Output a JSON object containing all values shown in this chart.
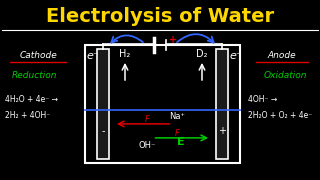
{
  "title": "Electrolysis of Water",
  "title_color": "#FFD700",
  "background_color": "#000000",
  "cathode_label": "Cathode",
  "anode_label": "Anode",
  "reduction_label": "Reduction",
  "oxidation_label": "Oxidation",
  "cathode_reaction1": "4H₂O + 4e⁻ →",
  "cathode_reaction2": "2H₂ + 4OH⁻",
  "anode_reaction1": "4OH⁻ →",
  "anode_reaction2": "2H₂O + O₂ + 4e⁻",
  "h2_label": "H₂",
  "d2_label": "D₂",
  "na_label": "Na⁺",
  "oh_label": "OH⁻",
  "e_minus": "e⁻",
  "E_label": "E",
  "F_label": "F",
  "plus_sign": "+",
  "minus_sign": "-"
}
